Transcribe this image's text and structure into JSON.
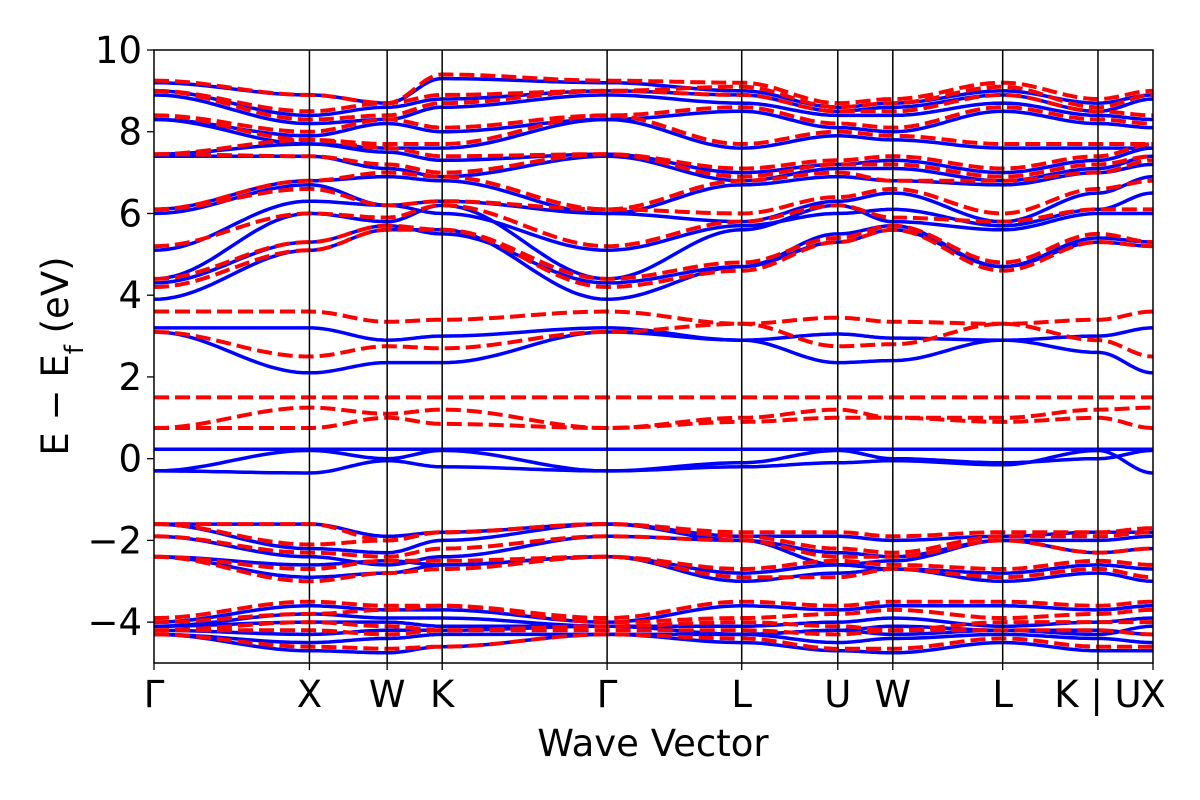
{
  "chart_data": {
    "type": "line",
    "title": "",
    "xlabel": "Wave Vector",
    "ylabel": "E − E_f (eV)",
    "ylabel_parts": {
      "main": "E − E",
      "sub": "f",
      "unit": " (eV)"
    },
    "ylim": [
      -5,
      10
    ],
    "yticks": [
      10,
      8,
      6,
      4,
      2,
      0,
      -2,
      -4
    ],
    "ytick_labels": [
      "10",
      "8",
      "6",
      "4",
      "2",
      "0",
      "−2",
      "−4"
    ],
    "kpoints": [
      {
        "label": "Γ",
        "k": 0.0
      },
      {
        "label": "X",
        "k": 1.0
      },
      {
        "label": "W",
        "k": 1.5
      },
      {
        "label": "K",
        "k": 1.854
      },
      {
        "label": "Γ",
        "k": 2.915
      },
      {
        "label": "L",
        "k": 3.781
      },
      {
        "label": "U",
        "k": 4.399
      },
      {
        "label": "W",
        "k": 4.753
      },
      {
        "label": "L",
        "k": 5.46
      },
      {
        "label": "K | U",
        "k": 6.073
      },
      {
        "label": "X",
        "k": 6.427
      }
    ],
    "grid": false,
    "legend": "none",
    "series": [
      {
        "name": "blue-solid",
        "color": "#0000ff",
        "style": "solid",
        "bands": [
          [
            -4.3,
            -4.7,
            -4.75,
            -4.6,
            -4.3,
            -4.5,
            -4.7,
            -4.75,
            -4.5,
            -4.7,
            -4.7
          ],
          [
            -4.3,
            -4.5,
            -4.4,
            -4.3,
            -4.3,
            -4.3,
            -4.5,
            -4.4,
            -4.3,
            -4.4,
            -4.5
          ],
          [
            -4.2,
            -4.3,
            -4.2,
            -4.2,
            -4.1,
            -4.3,
            -4.2,
            -4.3,
            -4.2,
            -4.2,
            -4.3
          ],
          [
            -4.1,
            -4.0,
            -4.0,
            -4.1,
            -4.1,
            -4.3,
            -4.2,
            -4.1,
            -4.2,
            -4.3,
            -4.1
          ],
          [
            -4.1,
            -3.8,
            -3.9,
            -3.9,
            -4.1,
            -4.1,
            -4.0,
            -3.9,
            -4.1,
            -4.0,
            -3.9
          ],
          [
            -4.0,
            -3.6,
            -3.7,
            -3.7,
            -4.0,
            -3.6,
            -3.7,
            -3.6,
            -3.6,
            -3.7,
            -3.6
          ],
          [
            -2.4,
            -2.9,
            -2.8,
            -2.6,
            -2.4,
            -3.0,
            -2.8,
            -2.7,
            -3.0,
            -2.8,
            -3.0
          ],
          [
            -2.4,
            -2.6,
            -2.5,
            -2.6,
            -2.4,
            -2.8,
            -2.6,
            -2.7,
            -2.8,
            -2.6,
            -2.7
          ],
          [
            -1.9,
            -2.4,
            -2.6,
            -2.4,
            -1.9,
            -2.0,
            -2.6,
            -2.5,
            -2.0,
            -2.3,
            -2.2
          ],
          [
            -1.6,
            -2.2,
            -2.3,
            -2.0,
            -1.6,
            -2.0,
            -2.3,
            -2.4,
            -2.0,
            -2.0,
            -1.9
          ],
          [
            -1.6,
            -1.6,
            -1.9,
            -1.8,
            -1.6,
            -1.9,
            -1.9,
            -2.0,
            -1.9,
            -1.8,
            -1.8
          ],
          [
            -0.3,
            -0.35,
            -0.05,
            -0.2,
            -0.3,
            -0.2,
            -0.1,
            -0.05,
            -0.15,
            0.2,
            -0.35
          ],
          [
            -0.3,
            0.2,
            0.0,
            0.2,
            -0.3,
            -0.1,
            0.2,
            0.0,
            -0.1,
            0.0,
            0.2
          ],
          [
            0.23,
            0.23,
            0.23,
            0.23,
            0.23,
            0.23,
            0.23,
            0.23,
            0.23,
            0.23,
            0.23
          ],
          [
            3.1,
            2.1,
            2.35,
            2.35,
            3.1,
            2.9,
            2.35,
            2.4,
            2.9,
            2.6,
            2.1
          ],
          [
            3.2,
            3.2,
            2.9,
            3.0,
            3.2,
            2.9,
            3.05,
            2.95,
            2.9,
            3.0,
            3.2
          ],
          [
            3.9,
            5.1,
            5.6,
            5.6,
            3.9,
            4.7,
            5.3,
            5.6,
            4.7,
            5.3,
            5.2
          ],
          [
            4.3,
            5.3,
            5.7,
            5.5,
            4.3,
            4.7,
            5.5,
            5.7,
            4.7,
            5.4,
            5.3
          ],
          [
            4.4,
            6.0,
            5.8,
            6.2,
            4.4,
            5.6,
            6.2,
            5.8,
            5.6,
            6.0,
            6.0
          ],
          [
            5.1,
            6.3,
            6.2,
            6.0,
            5.1,
            5.7,
            6.0,
            6.1,
            5.7,
            6.1,
            6.5
          ],
          [
            6.0,
            6.7,
            6.2,
            6.3,
            6.0,
            5.8,
            6.3,
            6.5,
            5.8,
            6.5,
            6.9
          ],
          [
            6.1,
            6.8,
            6.9,
            6.8,
            6.0,
            6.7,
            6.9,
            6.8,
            6.7,
            7.0,
            7.2
          ],
          [
            7.4,
            7.4,
            7.1,
            6.9,
            7.4,
            6.8,
            7.1,
            7.1,
            6.8,
            7.1,
            7.4
          ],
          [
            7.45,
            7.7,
            7.5,
            7.3,
            7.45,
            7.0,
            7.2,
            7.3,
            7.0,
            7.3,
            7.6
          ],
          [
            8.3,
            7.7,
            7.6,
            7.6,
            8.3,
            7.6,
            7.9,
            7.8,
            7.6,
            7.6,
            7.6
          ],
          [
            8.3,
            7.9,
            8.2,
            8.0,
            8.3,
            8.5,
            8.1,
            8.0,
            8.5,
            8.2,
            8.1
          ],
          [
            8.9,
            8.2,
            8.3,
            8.6,
            8.9,
            8.7,
            8.4,
            8.4,
            8.7,
            8.4,
            8.3
          ],
          [
            9.0,
            8.4,
            8.6,
            8.8,
            9.0,
            8.9,
            8.5,
            8.6,
            8.9,
            8.5,
            8.8
          ],
          [
            9.2,
            8.9,
            8.7,
            9.3,
            9.2,
            9.0,
            8.6,
            8.7,
            9.0,
            8.7,
            8.9
          ]
        ]
      },
      {
        "name": "red-dashed",
        "color": "#ff0000",
        "style": "dashed",
        "bands": [
          [
            -4.3,
            -4.6,
            -4.65,
            -4.6,
            -4.3,
            -4.4,
            -4.65,
            -4.65,
            -4.4,
            -4.6,
            -4.6
          ],
          [
            -4.2,
            -4.2,
            -4.3,
            -4.2,
            -4.2,
            -4.2,
            -4.3,
            -4.2,
            -4.2,
            -4.2,
            -4.3
          ],
          [
            -4.2,
            -4.0,
            -4.1,
            -4.2,
            -4.1,
            -4.0,
            -4.1,
            -4.2,
            -4.0,
            -4.0,
            -4.0
          ],
          [
            -4.0,
            -3.8,
            -3.7,
            -3.6,
            -4.0,
            -3.9,
            -3.8,
            -3.7,
            -3.9,
            -3.8,
            -3.7
          ],
          [
            -3.9,
            -3.5,
            -3.6,
            -3.6,
            -3.9,
            -3.5,
            -3.6,
            -3.5,
            -3.5,
            -3.6,
            -3.5
          ],
          [
            -2.4,
            -3.0,
            -2.8,
            -2.7,
            -2.4,
            -2.9,
            -2.9,
            -2.7,
            -2.9,
            -2.7,
            -2.9
          ],
          [
            -2.4,
            -2.7,
            -2.5,
            -2.5,
            -2.4,
            -2.7,
            -2.5,
            -2.6,
            -2.7,
            -2.5,
            -2.6
          ],
          [
            -1.9,
            -2.3,
            -2.4,
            -2.2,
            -1.9,
            -2.0,
            -2.4,
            -2.4,
            -2.0,
            -2.3,
            -2.2
          ],
          [
            -1.6,
            -2.1,
            -2.0,
            -1.8,
            -1.6,
            -1.9,
            -2.2,
            -2.3,
            -1.9,
            -1.9,
            -1.8
          ],
          [
            -1.6,
            -1.6,
            -2.0,
            -1.8,
            -1.6,
            -1.8,
            -1.8,
            -1.9,
            -1.8,
            -1.8,
            -1.7
          ],
          [
            0.75,
            0.75,
            1.0,
            0.85,
            0.75,
            0.9,
            1.0,
            1.0,
            0.9,
            1.0,
            0.75
          ],
          [
            0.75,
            1.25,
            1.1,
            1.2,
            0.75,
            1.0,
            1.2,
            1.0,
            1.0,
            1.2,
            1.25
          ],
          [
            1.5,
            1.5,
            1.5,
            1.5,
            1.5,
            1.5,
            1.5,
            1.5,
            1.5,
            1.5,
            1.5
          ],
          [
            3.1,
            2.5,
            2.75,
            2.7,
            3.1,
            3.3,
            2.75,
            2.8,
            3.3,
            2.9,
            2.5
          ],
          [
            3.6,
            3.6,
            3.35,
            3.4,
            3.6,
            3.3,
            3.45,
            3.35,
            3.3,
            3.4,
            3.6
          ],
          [
            4.2,
            5.1,
            5.6,
            5.6,
            4.2,
            4.6,
            5.3,
            5.6,
            4.6,
            5.3,
            5.2
          ],
          [
            4.4,
            5.3,
            5.7,
            5.6,
            4.4,
            4.8,
            5.4,
            5.7,
            4.8,
            5.5,
            5.3
          ],
          [
            5.2,
            6.0,
            5.9,
            6.2,
            5.2,
            5.8,
            6.2,
            5.9,
            5.8,
            6.1,
            6.1
          ],
          [
            6.1,
            6.6,
            6.2,
            6.3,
            6.1,
            6.0,
            6.4,
            6.6,
            6.0,
            6.6,
            6.8
          ],
          [
            6.1,
            6.8,
            7.0,
            6.9,
            6.1,
            6.8,
            7.0,
            6.8,
            6.8,
            7.0,
            7.3
          ],
          [
            7.45,
            7.4,
            7.2,
            7.0,
            7.45,
            6.9,
            7.2,
            7.2,
            6.9,
            7.2,
            7.4
          ],
          [
            7.45,
            7.8,
            7.6,
            7.4,
            7.45,
            7.1,
            7.3,
            7.4,
            7.1,
            7.4,
            7.7
          ],
          [
            8.4,
            7.8,
            7.7,
            7.7,
            8.4,
            7.7,
            8.0,
            7.9,
            7.7,
            7.7,
            7.7
          ],
          [
            8.4,
            8.0,
            8.3,
            8.1,
            8.4,
            8.6,
            8.2,
            8.1,
            8.6,
            8.3,
            8.2
          ],
          [
            9.0,
            8.3,
            8.4,
            8.7,
            9.0,
            8.9,
            8.5,
            8.5,
            8.9,
            8.5,
            8.4
          ],
          [
            9.0,
            8.5,
            8.7,
            8.9,
            9.0,
            9.1,
            8.6,
            8.7,
            9.1,
            8.6,
            8.9
          ],
          [
            9.25,
            8.9,
            8.7,
            9.4,
            9.25,
            9.2,
            8.7,
            8.8,
            9.2,
            8.8,
            9.0
          ]
        ]
      }
    ]
  }
}
